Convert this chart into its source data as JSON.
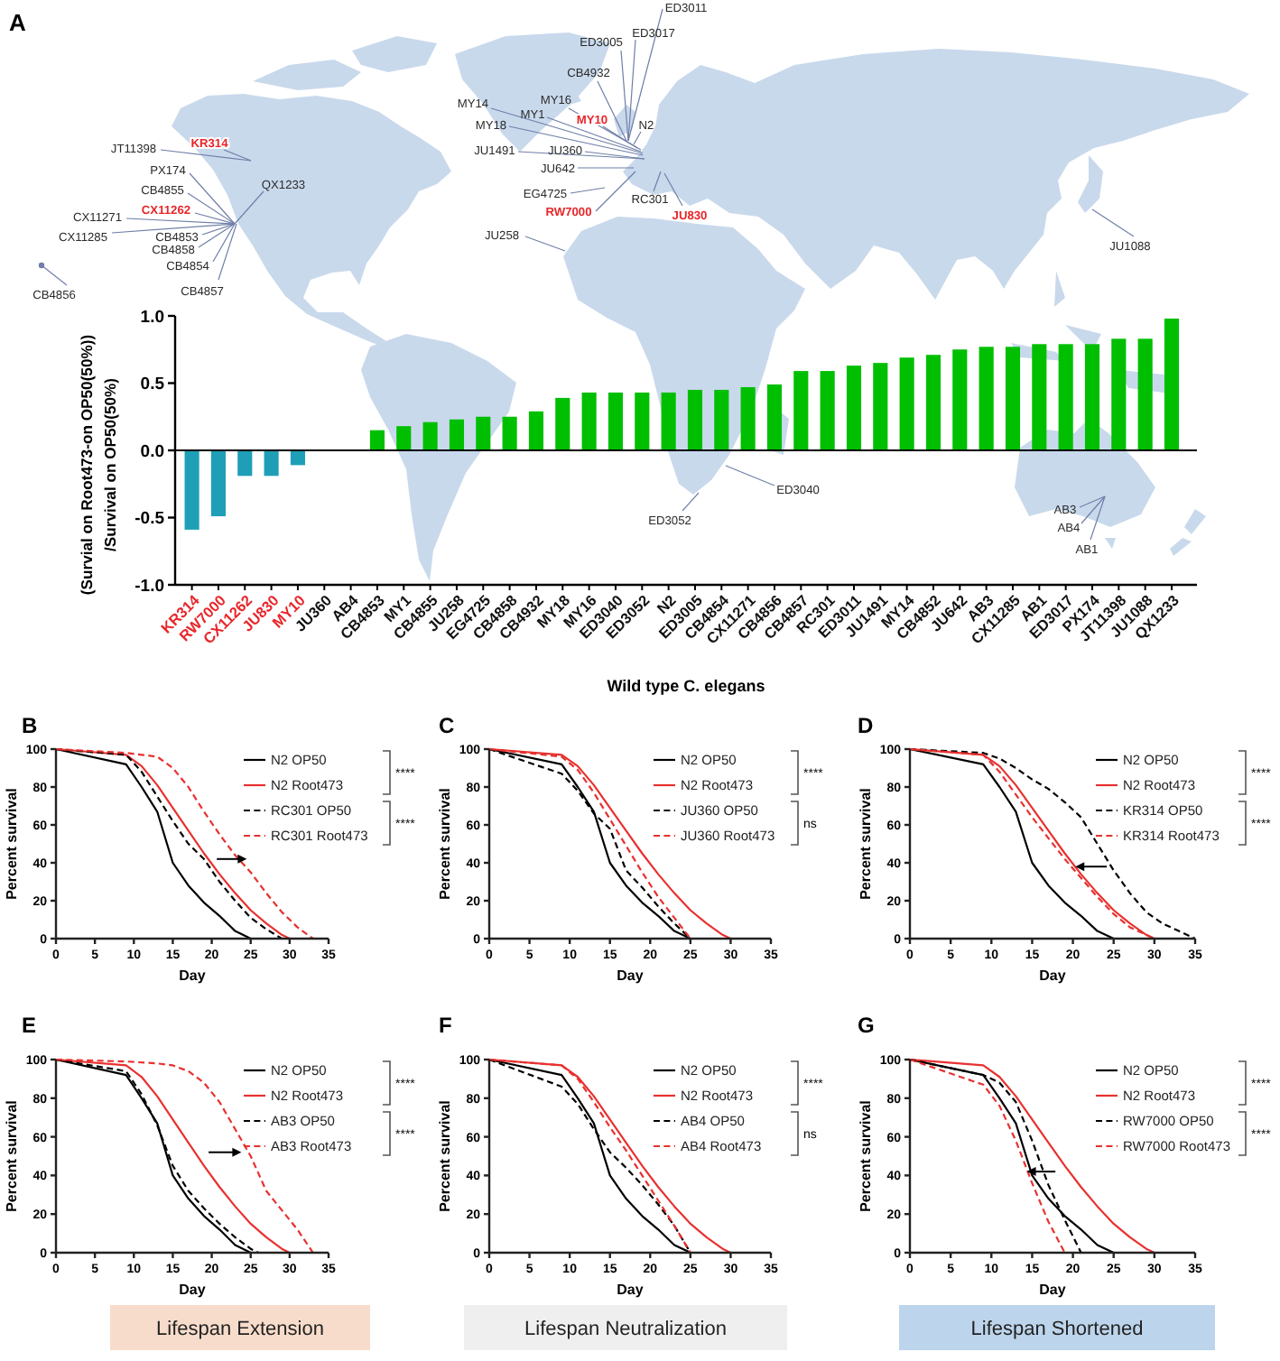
{
  "chart_data": [
    {
      "type": "bar",
      "title": "A",
      "xlabel": "Wild type C. elegans",
      "ylabel": "(Survial on Root473-on OP50(50%))\n/Survival on OP50(50%)",
      "categories": [
        "KR314",
        "RW7000",
        "CX11262",
        "JU830",
        "MY10",
        "JU360",
        "AB4",
        "CB4853",
        "MY1",
        "CB4855",
        "JU258",
        "EG4725",
        "CB4858",
        "CB4932",
        "MY18",
        "MY16",
        "ED3040",
        "ED3052",
        "N2",
        "ED3005",
        "CB4854",
        "CX11271",
        "CB4856",
        "CB4857",
        "RC301",
        "ED3011",
        "JU1491",
        "MY14",
        "CB4852",
        "JU642",
        "AB3",
        "CX11285",
        "AB1",
        "ED3017",
        "PX174",
        "JT11398",
        "JU1088",
        "QX1233"
      ],
      "values": [
        -0.59,
        -0.49,
        -0.19,
        -0.19,
        -0.11,
        0,
        0,
        0.15,
        0.18,
        0.21,
        0.23,
        0.25,
        0.25,
        0.29,
        0.39,
        0.43,
        0.43,
        0.43,
        0.43,
        0.45,
        0.45,
        0.47,
        0.49,
        0.59,
        0.59,
        0.63,
        0.65,
        0.69,
        0.71,
        0.75,
        0.77,
        0.77,
        0.79,
        0.79,
        0.79,
        0.83,
        0.83,
        0.98
      ],
      "colors": [
        "#1f9fb7",
        "#1f9fb7",
        "#1f9fb7",
        "#1f9fb7",
        "#1f9fb7",
        "#00bf00",
        "#00bf00",
        "#00bf00",
        "#00bf00",
        "#00bf00",
        "#00bf00",
        "#00bf00",
        "#00bf00",
        "#00bf00",
        "#00bf00",
        "#00bf00",
        "#00bf00",
        "#00bf00",
        "#00bf00",
        "#00bf00",
        "#00bf00",
        "#00bf00",
        "#00bf00",
        "#00bf00",
        "#00bf00",
        "#00bf00",
        "#00bf00",
        "#00bf00",
        "#00bf00",
        "#00bf00",
        "#00bf00",
        "#00bf00",
        "#00bf00",
        "#00bf00",
        "#00bf00",
        "#00bf00",
        "#00bf00",
        "#00bf00"
      ],
      "ylim": [
        -1,
        1
      ],
      "yticks": [
        {
          "value": -1,
          "label": "-1.0"
        },
        {
          "value": -0.5,
          "label": "-0.5"
        },
        {
          "value": 0,
          "label": "0.0"
        },
        {
          "value": 0.5,
          "label": "0.5"
        },
        {
          "value": 1,
          "label": "1.0"
        }
      ],
      "ref_lines": [
        {
          "axis": "y",
          "value": 0,
          "color": "#000000"
        }
      ],
      "annotations": [
        "JT11398",
        "KR314",
        "PX174",
        "CB4855",
        "CX11262",
        "CX11271",
        "CX11285",
        "CB4853",
        "CB4858",
        "CB4854",
        "CB4857",
        "QX1233",
        "CB4856",
        "ED3011",
        "ED3005",
        "ED3017",
        "CB4932",
        "MY14",
        "MY16",
        "MY1",
        "MY10",
        "MY18",
        "N2",
        "JU1491",
        "JU360",
        "JU642",
        "EG4725",
        "RC301",
        "RW7000",
        "JU830",
        "JU258",
        "JU1088",
        "ED3040",
        "ED3052",
        "AB3",
        "AB4",
        "AB1"
      ]
    },
    {
      "type": "line",
      "title": "B",
      "xlabel": "Day",
      "ylabel": "Percent survival",
      "xlim": [
        0,
        35
      ],
      "xticks": [
        0,
        5,
        10,
        15,
        20,
        25,
        30,
        35
      ],
      "ylim": [
        0,
        100
      ],
      "yticks": [
        0,
        20,
        40,
        60,
        80,
        100
      ],
      "legend": "right",
      "series": [
        {
          "name": "N2 OP50",
          "color": "#000000",
          "line_style": "solid",
          "x": [
            0,
            9,
            11,
            13,
            15,
            17,
            19,
            21,
            23,
            25
          ],
          "values": [
            100,
            92,
            80,
            67,
            40,
            28,
            19,
            12,
            4,
            0
          ]
        },
        {
          "name": "N2 Root473",
          "color": "#e8312f",
          "line_style": "solid",
          "x": [
            0,
            9,
            11,
            13,
            15,
            17,
            19,
            21,
            23,
            25,
            27,
            29,
            30
          ],
          "values": [
            100,
            97,
            91,
            81,
            69,
            57,
            45,
            34,
            24,
            15,
            8,
            2,
            0
          ]
        },
        {
          "name": "RC301 OP50",
          "color": "#000000",
          "line_style": "dashed",
          "x": [
            0,
            9,
            11,
            13,
            15,
            17,
            19,
            21,
            23,
            25,
            27,
            29
          ],
          "values": [
            100,
            97,
            88,
            75,
            62,
            50,
            42,
            30,
            20,
            11,
            5,
            0
          ]
        },
        {
          "name": "RC301 Root473",
          "color": "#e8312f",
          "line_style": "dashed",
          "x": [
            0,
            9,
            11,
            13,
            15,
            17,
            19,
            21,
            23,
            25,
            27,
            29,
            31,
            33
          ],
          "values": [
            100,
            98,
            97,
            96,
            90,
            80,
            67,
            55,
            44,
            35,
            24,
            14,
            6,
            0
          ]
        }
      ],
      "annotations": [
        "****",
        "****"
      ]
    },
    {
      "type": "line",
      "title": "C",
      "xlabel": "Day",
      "ylabel": "Percent survival",
      "xlim": [
        0,
        35
      ],
      "xticks": [
        0,
        5,
        10,
        15,
        20,
        25,
        30,
        35
      ],
      "ylim": [
        0,
        100
      ],
      "yticks": [
        0,
        20,
        40,
        60,
        80,
        100
      ],
      "legend": "right",
      "series": [
        {
          "name": "N2 OP50",
          "color": "#000000",
          "line_style": "solid",
          "x": [
            0,
            9,
            11,
            13,
            15,
            17,
            19,
            21,
            23,
            25
          ],
          "values": [
            100,
            92,
            80,
            67,
            40,
            28,
            19,
            12,
            4,
            0
          ]
        },
        {
          "name": "N2 Root473",
          "color": "#e8312f",
          "line_style": "solid",
          "x": [
            0,
            9,
            11,
            13,
            15,
            17,
            19,
            21,
            23,
            25,
            27,
            29,
            30
          ],
          "values": [
            100,
            97,
            91,
            81,
            69,
            57,
            45,
            34,
            24,
            15,
            8,
            2,
            0
          ]
        },
        {
          "name": "JU360 OP50",
          "color": "#000000",
          "line_style": "dashed",
          "x": [
            0,
            9,
            11,
            13,
            15,
            17,
            19,
            21,
            23,
            25
          ],
          "values": [
            100,
            87,
            78,
            66,
            58,
            36,
            27,
            17,
            8,
            0
          ]
        },
        {
          "name": "JU360 Root473",
          "color": "#e8312f",
          "line_style": "dashed",
          "x": [
            0,
            9,
            11,
            13,
            15,
            17,
            19,
            21,
            23,
            25
          ],
          "values": [
            100,
            96,
            89,
            77,
            63,
            49,
            35,
            22,
            11,
            0
          ]
        }
      ],
      "annotations": [
        "****",
        "ns"
      ]
    },
    {
      "type": "line",
      "title": "D",
      "xlabel": "Day",
      "ylabel": "Percent survival",
      "xlim": [
        0,
        35
      ],
      "xticks": [
        0,
        5,
        10,
        15,
        20,
        25,
        30,
        35
      ],
      "ylim": [
        0,
        100
      ],
      "yticks": [
        0,
        20,
        40,
        60,
        80,
        100
      ],
      "legend": "right",
      "series": [
        {
          "name": "N2 OP50",
          "color": "#000000",
          "line_style": "solid",
          "x": [
            0,
            9,
            11,
            13,
            15,
            17,
            19,
            21,
            23,
            25
          ],
          "values": [
            100,
            92,
            80,
            67,
            40,
            28,
            19,
            12,
            4,
            0
          ]
        },
        {
          "name": "N2 Root473",
          "color": "#e8312f",
          "line_style": "solid",
          "x": [
            0,
            9,
            11,
            13,
            15,
            17,
            19,
            21,
            23,
            25,
            27,
            29,
            30
          ],
          "values": [
            100,
            97,
            91,
            81,
            69,
            57,
            45,
            34,
            24,
            15,
            8,
            2,
            0
          ]
        },
        {
          "name": "KR314 OP50",
          "color": "#000000",
          "line_style": "dashed",
          "x": [
            0,
            9,
            11,
            13,
            15,
            17,
            19,
            21,
            23,
            25,
            27,
            29,
            31,
            33,
            35
          ],
          "values": [
            100,
            98,
            95,
            90,
            84,
            79,
            72,
            64,
            50,
            36,
            24,
            14,
            8,
            4,
            0
          ]
        },
        {
          "name": "KR314 Root473",
          "color": "#e8312f",
          "line_style": "dashed",
          "x": [
            0,
            9,
            11,
            13,
            15,
            17,
            19,
            21,
            23,
            25,
            27,
            29,
            30
          ],
          "values": [
            100,
            97,
            88,
            76,
            64,
            53,
            42,
            32,
            22,
            13,
            6,
            2,
            0
          ]
        }
      ],
      "annotations": [
        "****",
        "****"
      ]
    },
    {
      "type": "line",
      "title": "E",
      "xlabel": "Day",
      "ylabel": "Percent survival",
      "xlim": [
        0,
        35
      ],
      "xticks": [
        0,
        5,
        10,
        15,
        20,
        25,
        30,
        35
      ],
      "ylim": [
        0,
        100
      ],
      "yticks": [
        0,
        20,
        40,
        60,
        80,
        100
      ],
      "legend": "right",
      "series": [
        {
          "name": "N2 OP50",
          "color": "#000000",
          "line_style": "solid",
          "x": [
            0,
            9,
            11,
            13,
            15,
            17,
            19,
            21,
            23,
            25
          ],
          "values": [
            100,
            92,
            80,
            67,
            40,
            28,
            19,
            12,
            4,
            0
          ]
        },
        {
          "name": "N2 Root473",
          "color": "#e8312f",
          "line_style": "solid",
          "x": [
            0,
            9,
            11,
            13,
            15,
            17,
            19,
            21,
            23,
            25,
            27,
            29,
            30
          ],
          "values": [
            100,
            97,
            91,
            81,
            69,
            57,
            45,
            34,
            24,
            15,
            8,
            2,
            0
          ]
        },
        {
          "name": "AB3 OP50",
          "color": "#000000",
          "line_style": "dashed",
          "x": [
            0,
            9,
            11,
            13,
            15,
            17,
            19,
            21,
            23,
            25,
            26
          ],
          "values": [
            100,
            94,
            82,
            66,
            45,
            32,
            23,
            15,
            8,
            2,
            0
          ]
        },
        {
          "name": "AB3 Root473",
          "color": "#e8312f",
          "line_style": "dashed",
          "x": [
            0,
            9,
            13,
            15,
            17,
            19,
            21,
            23,
            25,
            27,
            29,
            31,
            33
          ],
          "values": [
            100,
            99,
            98,
            97,
            94,
            88,
            78,
            64,
            50,
            32,
            22,
            12,
            0
          ]
        }
      ],
      "annotations": [
        "****",
        "****",
        "Lifespan Extension"
      ]
    },
    {
      "type": "line",
      "title": "F",
      "xlabel": "Day",
      "ylabel": "Percent survival",
      "xlim": [
        0,
        35
      ],
      "xticks": [
        0,
        5,
        10,
        15,
        20,
        25,
        30,
        35
      ],
      "ylim": [
        0,
        100
      ],
      "yticks": [
        0,
        20,
        40,
        60,
        80,
        100
      ],
      "legend": "right",
      "series": [
        {
          "name": "N2 OP50",
          "color": "#000000",
          "line_style": "solid",
          "x": [
            0,
            9,
            11,
            13,
            15,
            17,
            19,
            21,
            23,
            25
          ],
          "values": [
            100,
            92,
            80,
            67,
            40,
            28,
            19,
            12,
            4,
            0
          ]
        },
        {
          "name": "N2 Root473",
          "color": "#e8312f",
          "line_style": "solid",
          "x": [
            0,
            9,
            11,
            13,
            15,
            17,
            19,
            21,
            23,
            25,
            27,
            29,
            30
          ],
          "values": [
            100,
            97,
            91,
            81,
            69,
            57,
            45,
            34,
            24,
            15,
            8,
            2,
            0
          ]
        },
        {
          "name": "AB4 OP50",
          "color": "#000000",
          "line_style": "dashed",
          "x": [
            0,
            9,
            11,
            13,
            15,
            17,
            19,
            21,
            23,
            25
          ],
          "values": [
            100,
            86,
            77,
            64,
            52,
            44,
            35,
            25,
            14,
            0
          ]
        },
        {
          "name": "AB4 Root473",
          "color": "#e8312f",
          "line_style": "dashed",
          "x": [
            0,
            9,
            11,
            13,
            15,
            17,
            19,
            21,
            23,
            25
          ],
          "values": [
            100,
            97,
            90,
            78,
            65,
            53,
            40,
            27,
            14,
            0
          ]
        }
      ],
      "annotations": [
        "****",
        "ns",
        "Lifespan Neutralization"
      ]
    },
    {
      "type": "line",
      "title": "G",
      "xlabel": "Day",
      "ylabel": "Percent survival",
      "xlim": [
        0,
        35
      ],
      "xticks": [
        0,
        5,
        10,
        15,
        20,
        25,
        30,
        35
      ],
      "ylim": [
        0,
        100
      ],
      "yticks": [
        0,
        20,
        40,
        60,
        80,
        100
      ],
      "legend": "right",
      "series": [
        {
          "name": "N2 OP50",
          "color": "#000000",
          "line_style": "solid",
          "x": [
            0,
            9,
            11,
            13,
            15,
            17,
            19,
            21,
            23,
            25
          ],
          "values": [
            100,
            92,
            80,
            67,
            40,
            28,
            19,
            12,
            4,
            0
          ]
        },
        {
          "name": "N2 Root473",
          "color": "#e8312f",
          "line_style": "solid",
          "x": [
            0,
            9,
            11,
            13,
            15,
            17,
            19,
            21,
            23,
            25,
            27,
            29,
            30
          ],
          "values": [
            100,
            97,
            91,
            81,
            69,
            57,
            45,
            34,
            24,
            15,
            8,
            2,
            0
          ]
        },
        {
          "name": "RW7000 OP50",
          "color": "#000000",
          "line_style": "dashed",
          "x": [
            0,
            9,
            11,
            13,
            15,
            17,
            19,
            21
          ],
          "values": [
            100,
            92,
            88,
            78,
            58,
            35,
            17,
            0
          ]
        },
        {
          "name": "RW7000 Root473",
          "color": "#e8312f",
          "line_style": "dashed",
          "x": [
            0,
            9,
            11,
            13,
            15,
            17,
            19
          ],
          "values": [
            100,
            87,
            76,
            58,
            36,
            16,
            0
          ]
        }
      ],
      "annotations": [
        "****",
        "****",
        "Lifespan Shortened"
      ]
    }
  ]
}
